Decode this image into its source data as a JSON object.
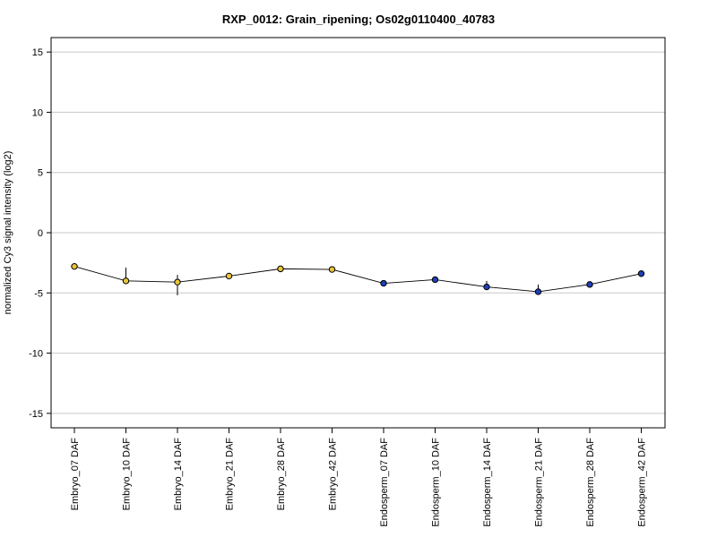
{
  "chart_data": {
    "type": "line",
    "title": "RXP_0012: Grain_ripening; Os02g0110400_40783",
    "xlabel": "",
    "ylabel": "normalized Cy3 signal intensity (log2)",
    "ylim": [
      -16.2,
      16.2
    ],
    "yticks": [
      -15,
      -10,
      -5,
      0,
      5,
      10,
      15
    ],
    "grid": true,
    "categories": [
      "Embryo_07 DAF",
      "Embryo_10 DAF",
      "Embryo_14 DAF",
      "Embryo_21 DAF",
      "Embryo_28 DAF",
      "Embryo_42 DAF",
      "Endosperm_07 DAF",
      "Endosperm_10 DAF",
      "Endosperm_14 DAF",
      "Endosperm_21 DAF",
      "Endosperm_28 DAF",
      "Endosperm_42 DAF"
    ],
    "series": [
      {
        "values": [
          -2.8,
          -4.0,
          -4.1,
          -3.6,
          -3.0,
          -3.05,
          -4.2,
          -3.9,
          -4.5,
          -4.9,
          -4.3,
          -3.4
        ],
        "error_low": [
          -2.8,
          -4.0,
          -5.2,
          -3.6,
          -3.0,
          -3.05,
          -4.2,
          -3.9,
          -4.7,
          -5.0,
          -4.5,
          -3.4
        ],
        "error_high": [
          -2.8,
          -2.9,
          -3.5,
          -3.6,
          -3.0,
          -3.05,
          -4.2,
          -3.9,
          -4.0,
          -4.3,
          -4.3,
          -3.4
        ],
        "point_colors": [
          "#e8c53a",
          "#e8c53a",
          "#e8c53a",
          "#e8c53a",
          "#e8c53a",
          "#e8c53a",
          "#1f3fb8",
          "#1f3fb8",
          "#1f3fb8",
          "#1f3fb8",
          "#1f3fb8",
          "#1f3fb8"
        ]
      }
    ]
  }
}
